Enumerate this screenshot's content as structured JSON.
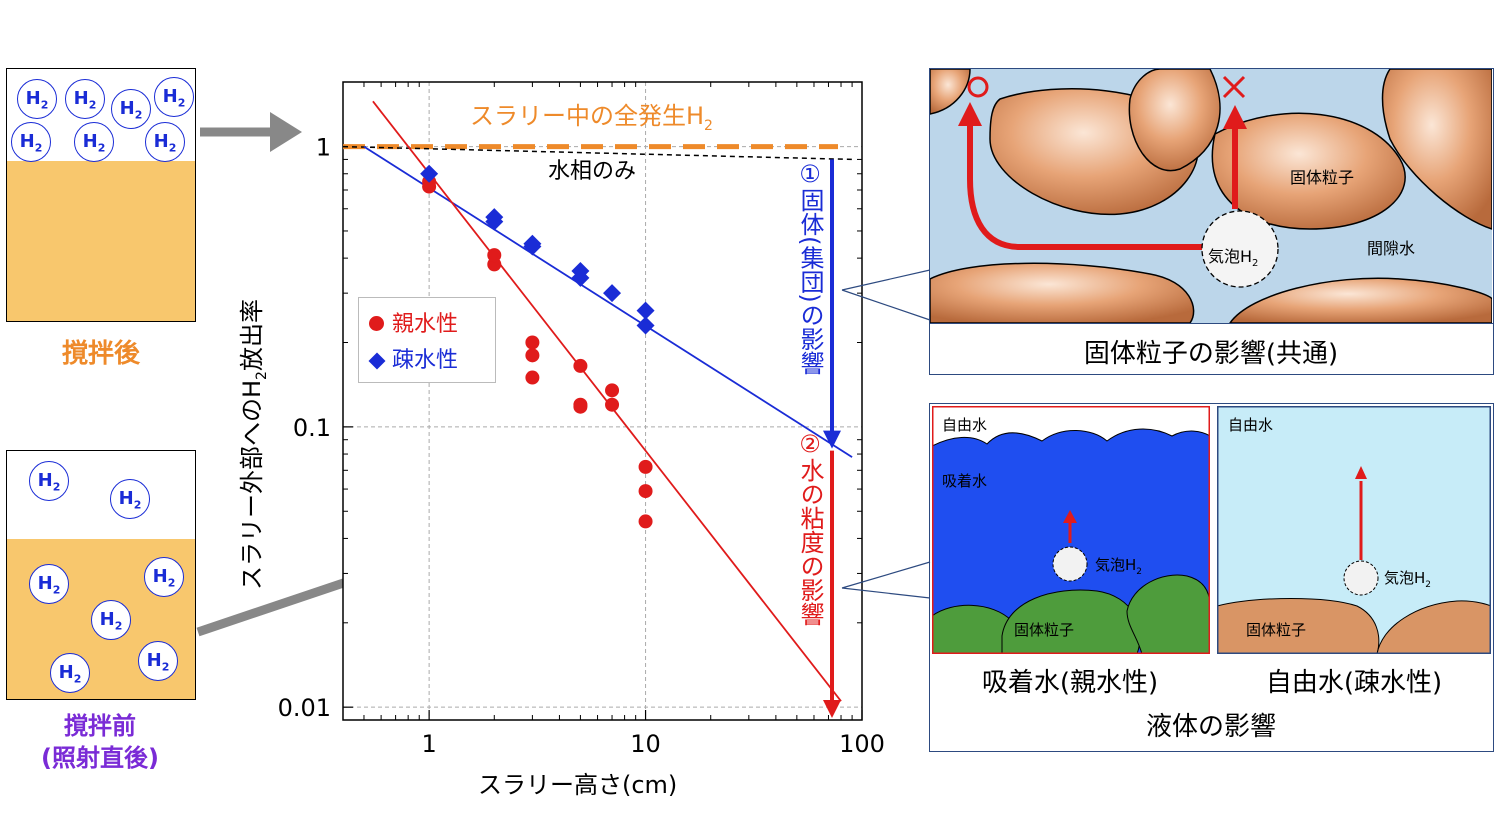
{
  "beaker_after": {
    "caption": "撹拌後",
    "bubble_label": "H",
    "bubble_sub": "2"
  },
  "beaker_before": {
    "caption_line1": "撹拌前",
    "caption_line2": "(照射直後)",
    "bubble_label": "H",
    "bubble_sub": "2"
  },
  "chart_data": {
    "type": "scatter",
    "xlabel": "スラリー高さ(cm)",
    "ylabel_parts": [
      "スラリー外部への",
      "H",
      "2",
      "放出率"
    ],
    "xscale": "log",
    "yscale": "log",
    "xlim": [
      0.4,
      100
    ],
    "ylim": [
      0.009,
      1.7
    ],
    "xticks": [
      1,
      10,
      100
    ],
    "xtick_labels": [
      "1",
      "10",
      "100"
    ],
    "yticks": [
      0.01,
      0.1,
      1
    ],
    "ytick_labels": [
      "0.01",
      "0.1",
      "1"
    ],
    "grid": true,
    "legend_position": "left",
    "series": [
      {
        "name": "親水性",
        "marker": "circle",
        "color": "#e01b1b",
        "points": [
          [
            1,
            0.72
          ],
          [
            1,
            0.75
          ],
          [
            2,
            0.38
          ],
          [
            2,
            0.41
          ],
          [
            3,
            0.2
          ],
          [
            3,
            0.18
          ],
          [
            3,
            0.15
          ],
          [
            5,
            0.165
          ],
          [
            5,
            0.12
          ],
          [
            5,
            0.118
          ],
          [
            7,
            0.135
          ],
          [
            7,
            0.12
          ],
          [
            10,
            0.072
          ],
          [
            10,
            0.059
          ],
          [
            10,
            0.046
          ]
        ]
      },
      {
        "name": "疎水性",
        "marker": "diamond",
        "color": "#1a2cd6",
        "points": [
          [
            1,
            0.8
          ],
          [
            2,
            0.56
          ],
          [
            2,
            0.54
          ],
          [
            3,
            0.45
          ],
          [
            3,
            0.44
          ],
          [
            5,
            0.36
          ],
          [
            5,
            0.34
          ],
          [
            7,
            0.3
          ],
          [
            10,
            0.26
          ],
          [
            10,
            0.23
          ]
        ]
      }
    ],
    "fit_lines": [
      {
        "color": "#1a2cd6",
        "from": [
          0.5,
          1.0
        ],
        "to": [
          90,
          0.078
        ]
      },
      {
        "color": "#e01b1b",
        "from": [
          0.55,
          1.45
        ],
        "to": [
          80,
          0.0105
        ]
      }
    ],
    "reference_total": {
      "label": "スラリー中の全発生H",
      "label_sub": "2",
      "value": 1.0,
      "color": "#ee8a2a"
    },
    "reference_water": {
      "label": "水相のみ",
      "from": [
        0.4,
        1.0
      ],
      "to": [
        90,
        0.9
      ]
    },
    "effect1": {
      "label": "①固体(集団)の影響",
      "color": "#1a2cd6"
    },
    "effect2": {
      "label": "②水の粘度の影響",
      "color": "#e01b1b"
    }
  },
  "solid_panel": {
    "label_solid": "固体粒子",
    "label_pore": "間隙水",
    "label_bubble": "気泡H",
    "label_bubble_sub": "2",
    "mark_ok": "○",
    "mark_ng": "×",
    "caption": "固体粒子の影響(共通)"
  },
  "liquid_panel": {
    "left_free": "自由水",
    "left_adsorbed": "吸着水",
    "left_bubble": "気泡H",
    "left_bubble_sub": "2",
    "left_solid": "固体粒子",
    "right_free": "自由水",
    "right_bubble": "気泡H",
    "right_bubble_sub": "2",
    "right_solid": "固体粒子",
    "caption_left": "吸着水(親水性)",
    "caption_right": "自由水(疎水性)",
    "caption_bottom": "液体の影響"
  }
}
